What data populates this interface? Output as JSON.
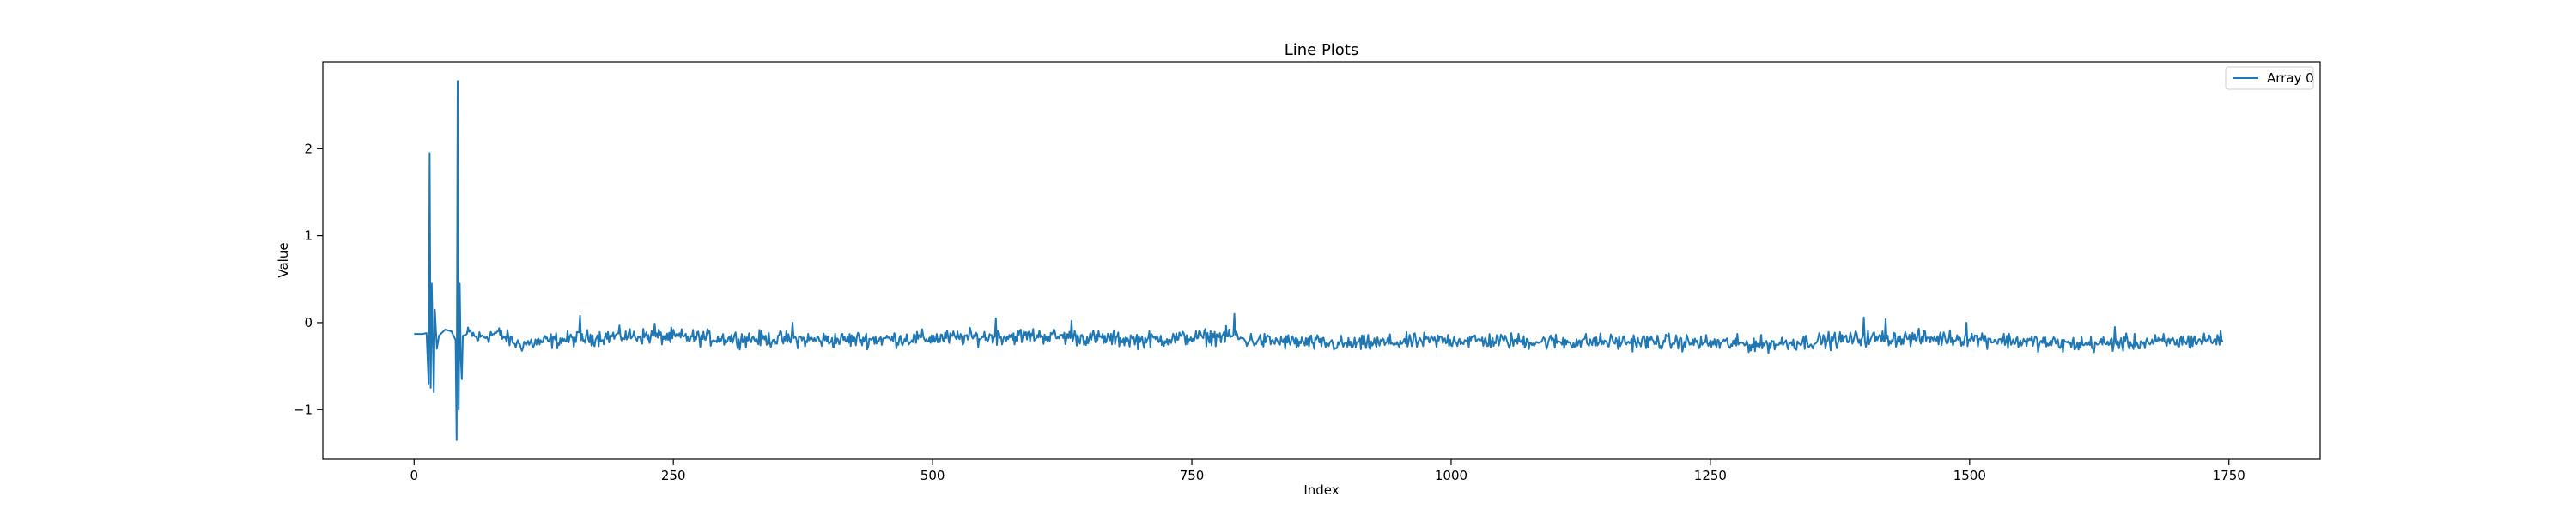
{
  "chart_data": {
    "type": "line",
    "title": "Line Plots",
    "xlabel": "Index",
    "ylabel": "Value",
    "xlim": [
      -88,
      1838
    ],
    "ylim": [
      -1.57,
      3.0
    ],
    "x_ticks": [
      0,
      250,
      500,
      750,
      1000,
      1250,
      1500,
      1750
    ],
    "y_ticks": [
      -1,
      0,
      1,
      2
    ],
    "grid": false,
    "legend_position": "top-right",
    "color": "#1f77b4",
    "series": [
      {
        "name": "Array 0",
        "n_points": 1745,
        "profile": [
          [
            0,
            -0.13
          ],
          [
            8,
            -0.13
          ],
          [
            12,
            -0.12
          ],
          [
            14,
            -0.7
          ],
          [
            15,
            1.95
          ],
          [
            16,
            -0.75
          ],
          [
            17,
            0.45
          ],
          [
            19,
            -0.8
          ],
          [
            20,
            0.15
          ],
          [
            22,
            -0.3
          ],
          [
            24,
            -0.15
          ],
          [
            30,
            -0.08
          ],
          [
            36,
            -0.1
          ],
          [
            40,
            -0.2
          ],
          [
            41,
            -1.35
          ],
          [
            42,
            2.78
          ],
          [
            43,
            -1.0
          ],
          [
            44,
            0.45
          ],
          [
            45,
            -0.4
          ],
          [
            46,
            -0.65
          ],
          [
            47,
            -0.15
          ],
          [
            55,
            -0.12
          ],
          [
            60,
            -0.18
          ],
          [
            80,
            -0.12
          ],
          [
            100,
            -0.25
          ],
          [
            140,
            -0.2
          ],
          [
            200,
            -0.15
          ],
          [
            300,
            -0.18
          ],
          [
            400,
            -0.2
          ],
          [
            500,
            -0.18
          ],
          [
            600,
            -0.15
          ],
          [
            700,
            -0.2
          ],
          [
            790,
            -0.15
          ],
          [
            800,
            -0.2
          ],
          [
            900,
            -0.25
          ],
          [
            1000,
            -0.2
          ],
          [
            1100,
            -0.22
          ],
          [
            1200,
            -0.22
          ],
          [
            1300,
            -0.25
          ],
          [
            1400,
            -0.18
          ],
          [
            1500,
            -0.18
          ],
          [
            1600,
            -0.25
          ],
          [
            1700,
            -0.22
          ],
          [
            1744,
            -0.19
          ]
        ],
        "peaks": [
          [
            160,
            0.08
          ],
          [
            232,
            -0.01
          ],
          [
            365,
            0.0
          ],
          [
            561,
            0.05
          ],
          [
            634,
            0.02
          ],
          [
            791,
            0.1
          ],
          [
            1398,
            0.06
          ],
          [
            1419,
            0.04
          ],
          [
            1497,
            0.0
          ],
          [
            1640,
            -0.05
          ]
        ]
      }
    ]
  }
}
